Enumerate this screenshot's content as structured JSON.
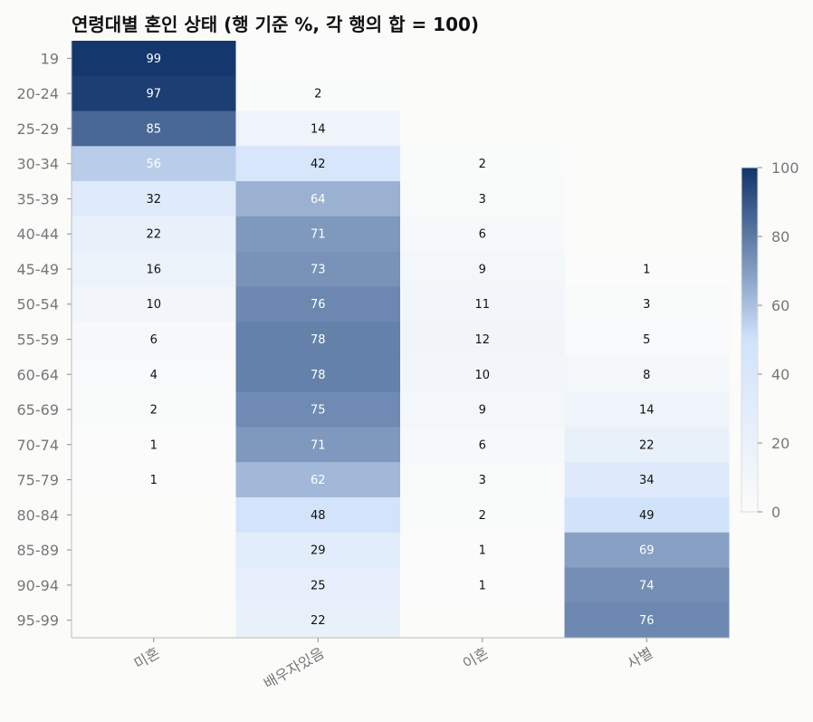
{
  "chart_data": {
    "type": "heatmap",
    "title": "연령대별 혼인 상태  (행 기준 %, 각 행의 합 = 100)",
    "rows": [
      "19",
      "20-24",
      "25-29",
      "30-34",
      "35-39",
      "40-44",
      "45-49",
      "50-54",
      "55-59",
      "60-64",
      "65-69",
      "70-74",
      "75-79",
      "80-84",
      "85-89",
      "90-94",
      "95-99"
    ],
    "columns": [
      "미혼",
      "배우자있음",
      "이혼",
      "사별"
    ],
    "values": [
      [
        99,
        1,
        0,
        0
      ],
      [
        97,
        2,
        0,
        0
      ],
      [
        85,
        14,
        0,
        0
      ],
      [
        56,
        42,
        2,
        0
      ],
      [
        32,
        64,
        3,
        0
      ],
      [
        22,
        71,
        6,
        0
      ],
      [
        16,
        73,
        9,
        1
      ],
      [
        10,
        76,
        11,
        3
      ],
      [
        6,
        78,
        12,
        5
      ],
      [
        4,
        78,
        10,
        8
      ],
      [
        2,
        75,
        9,
        14
      ],
      [
        1,
        71,
        6,
        22
      ],
      [
        1,
        62,
        3,
        34
      ],
      [
        0,
        48,
        2,
        49
      ],
      [
        0,
        29,
        1,
        69
      ],
      [
        0,
        25,
        1,
        74
      ],
      [
        0,
        22,
        0,
        76
      ]
    ],
    "value_labels": [
      [
        "99",
        "",
        "",
        ""
      ],
      [
        "97",
        "2",
        "",
        ""
      ],
      [
        "85",
        "14",
        "",
        ""
      ],
      [
        "56",
        "42",
        "2",
        ""
      ],
      [
        "32",
        "64",
        "3",
        ""
      ],
      [
        "22",
        "71",
        "6",
        ""
      ],
      [
        "16",
        "73",
        "9",
        "1"
      ],
      [
        "10",
        "76",
        "11",
        "3"
      ],
      [
        "6",
        "78",
        "12",
        "5"
      ],
      [
        "4",
        "78",
        "10",
        "8"
      ],
      [
        "2",
        "75",
        "9",
        "14"
      ],
      [
        "1",
        "71",
        "6",
        "22"
      ],
      [
        "1",
        "62",
        "3",
        "34"
      ],
      [
        "",
        "48",
        "2",
        "49"
      ],
      [
        "",
        "29",
        "1",
        "69"
      ],
      [
        "",
        "25",
        "1",
        "74"
      ],
      [
        "",
        "22",
        "",
        "76"
      ]
    ],
    "colorbar": {
      "range": [
        0,
        100
      ],
      "ticks": [
        "0",
        "20",
        "40",
        "60",
        "80",
        "100"
      ]
    },
    "colors": {
      "low": "#fbfbfa",
      "mid": "#d0e2fb",
      "high": "#10346a"
    }
  }
}
